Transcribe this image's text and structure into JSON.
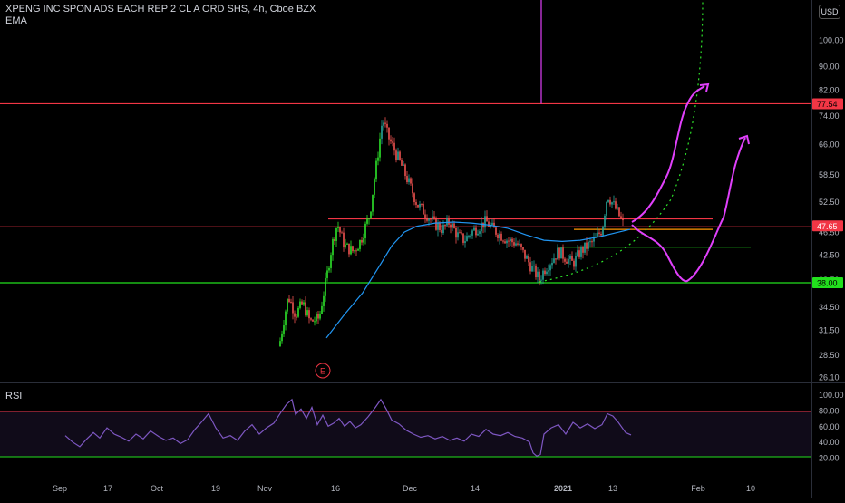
{
  "legend": {
    "symbol_line": "XPENG INC SPON ADS EACH REP 2 CL A ORD SHS, 4h, Cboe BZX",
    "indicator": "EMA"
  },
  "rsi_panel": {
    "label": "RSI"
  },
  "currency_button": "USD",
  "price_axis": {
    "ticks": [
      "100.00",
      "90.00",
      "82.00",
      "74.00",
      "66.00",
      "58.50",
      "52.50",
      "46.50",
      "42.50",
      "38.50",
      "34.50",
      "31.50",
      "28.50",
      "26.10"
    ],
    "badges": [
      {
        "label": "77.54",
        "color": "#f23645",
        "text_color": "#000000"
      },
      {
        "label": "47.65",
        "color": "#f23645",
        "text_color": "#ffffff"
      },
      {
        "label": "38.00",
        "color": "#22e01d",
        "text_color": "#000000"
      }
    ]
  },
  "rsi_axis": {
    "ticks": [
      "100.00",
      "80.00",
      "60.00",
      "40.00",
      "20.00"
    ]
  },
  "time_axis": {
    "labels": [
      "Sep",
      "17",
      "Oct",
      "19",
      "Nov",
      "16",
      "Dec",
      "14",
      "2021",
      "13",
      "Feb",
      "10"
    ]
  },
  "earnings_marker": {
    "label": "E",
    "color": "#f23645"
  },
  "colors": {
    "up": "#26a69a",
    "up_bright": "#2ee62a",
    "down": "#ef5350",
    "ema": "#2196f3",
    "rsi": "#7e57c2",
    "resistance": "#f23645",
    "support": "#22e01d",
    "projection": "#e040fb",
    "orange": "#ff9800"
  },
  "chart_data": {
    "type": "candlestick",
    "title": "XPENG INC SPON ADS EACH REP 2 CL A ORD SHS, 4h, Cboe BZX",
    "indicators": [
      "EMA",
      "RSI"
    ],
    "price_range": [
      26.1,
      100.0
    ],
    "price_scale": "log",
    "x_labels": [
      "Sep",
      "17",
      "Oct",
      "19",
      "Nov",
      "16",
      "Dec",
      "14",
      "2021",
      "13",
      "Feb",
      "10"
    ],
    "approx_daily_close": [
      {
        "date": "Nov 6",
        "close": 29.5
      },
      {
        "date": "Nov 9",
        "close": 36.0
      },
      {
        "date": "Nov 10",
        "close": 33.5
      },
      {
        "date": "Nov 12",
        "close": 33.0
      },
      {
        "date": "Nov 16",
        "close": 44.0
      },
      {
        "date": "Nov 17",
        "close": 48.0
      },
      {
        "date": "Nov 18",
        "close": 43.0
      },
      {
        "date": "Nov 20",
        "close": 45.0
      },
      {
        "date": "Nov 23",
        "close": 58.0
      },
      {
        "date": "Nov 24",
        "close": 73.0
      },
      {
        "date": "Nov 27",
        "close": 65.0
      },
      {
        "date": "Dec 1",
        "close": 60.0
      },
      {
        "date": "Dec 4",
        "close": 52.0
      },
      {
        "date": "Dec 8",
        "close": 48.0
      },
      {
        "date": "Dec 11",
        "close": 46.0
      },
      {
        "date": "Dec 15",
        "close": 48.5
      },
      {
        "date": "Dec 18",
        "close": 46.0
      },
      {
        "date": "Dec 22",
        "close": 44.0
      },
      {
        "date": "Dec 28",
        "close": 39.0
      },
      {
        "date": "Dec 31",
        "close": 42.5
      },
      {
        "date": "Jan 5",
        "close": 43.5
      },
      {
        "date": "Jan 8",
        "close": 46.0
      },
      {
        "date": "Jan 12",
        "close": 54.0
      },
      {
        "date": "Jan 15",
        "close": 47.65
      }
    ],
    "horizontal_levels": [
      {
        "price": 77.54,
        "color": "red"
      },
      {
        "price": 49.0,
        "color": "red"
      },
      {
        "price": 47.0,
        "color": "orange"
      },
      {
        "price": 43.8,
        "color": "green"
      },
      {
        "price": 38.0,
        "color": "green"
      }
    ],
    "rsi_levels": [
      70,
      30
    ],
    "rsi_range": [
      15,
      100
    ]
  }
}
